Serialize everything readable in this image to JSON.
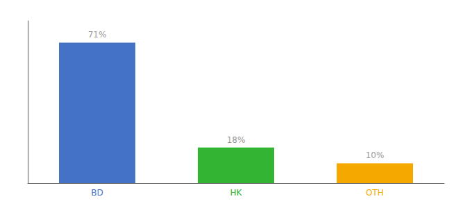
{
  "chart_data": {
    "type": "bar",
    "categories": [
      "BD",
      "HK",
      "OTH"
    ],
    "values": [
      71,
      18,
      10
    ],
    "value_labels": [
      "71%",
      "18%",
      "10%"
    ],
    "colors": [
      "#4472c4",
      "#33b533",
      "#f5a800"
    ],
    "ylim": [
      0,
      82
    ],
    "data_labels": true,
    "tick_labels": "x",
    "grid": false
  }
}
